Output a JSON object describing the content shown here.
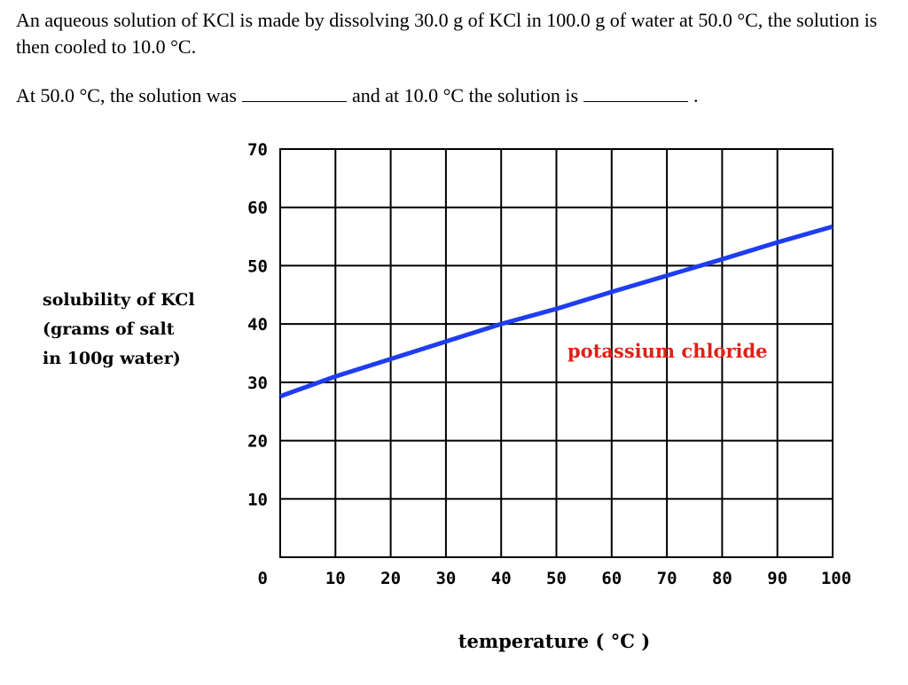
{
  "question": {
    "text": "An aqueous solution of KCl is made by dissolving 30.0 g of KCl in 100.0 g of water at 50.0 °C, the solution is then cooled to 10.0 °C.",
    "prompt_part1": "At 50.0 °C, the solution was",
    "prompt_part2": "and at 10.0 °C the solution is",
    "prompt_end": "."
  },
  "chart_data": {
    "type": "line",
    "xlabel": "temperature ( °C )",
    "ylabel_lines": [
      "solubility of KCl",
      "(grams of salt",
      "in 100g water)"
    ],
    "x_ticks": [
      0,
      10,
      20,
      30,
      40,
      50,
      60,
      70,
      80,
      90,
      100
    ],
    "y_ticks": [
      0,
      10,
      20,
      30,
      40,
      50,
      60,
      70
    ],
    "xlim": [
      0,
      100
    ],
    "ylim": [
      0,
      70
    ],
    "grid": true,
    "series": [
      {
        "name": "potassium chloride",
        "color": "#1f3df0",
        "label_color": "#e0201a",
        "x": [
          0,
          10,
          20,
          30,
          40,
          50,
          60,
          70,
          80,
          90,
          100
        ],
        "y": [
          27.6,
          31.0,
          34.0,
          37.0,
          40.0,
          42.6,
          45.5,
          48.3,
          51.1,
          54.0,
          56.7
        ]
      }
    ]
  }
}
